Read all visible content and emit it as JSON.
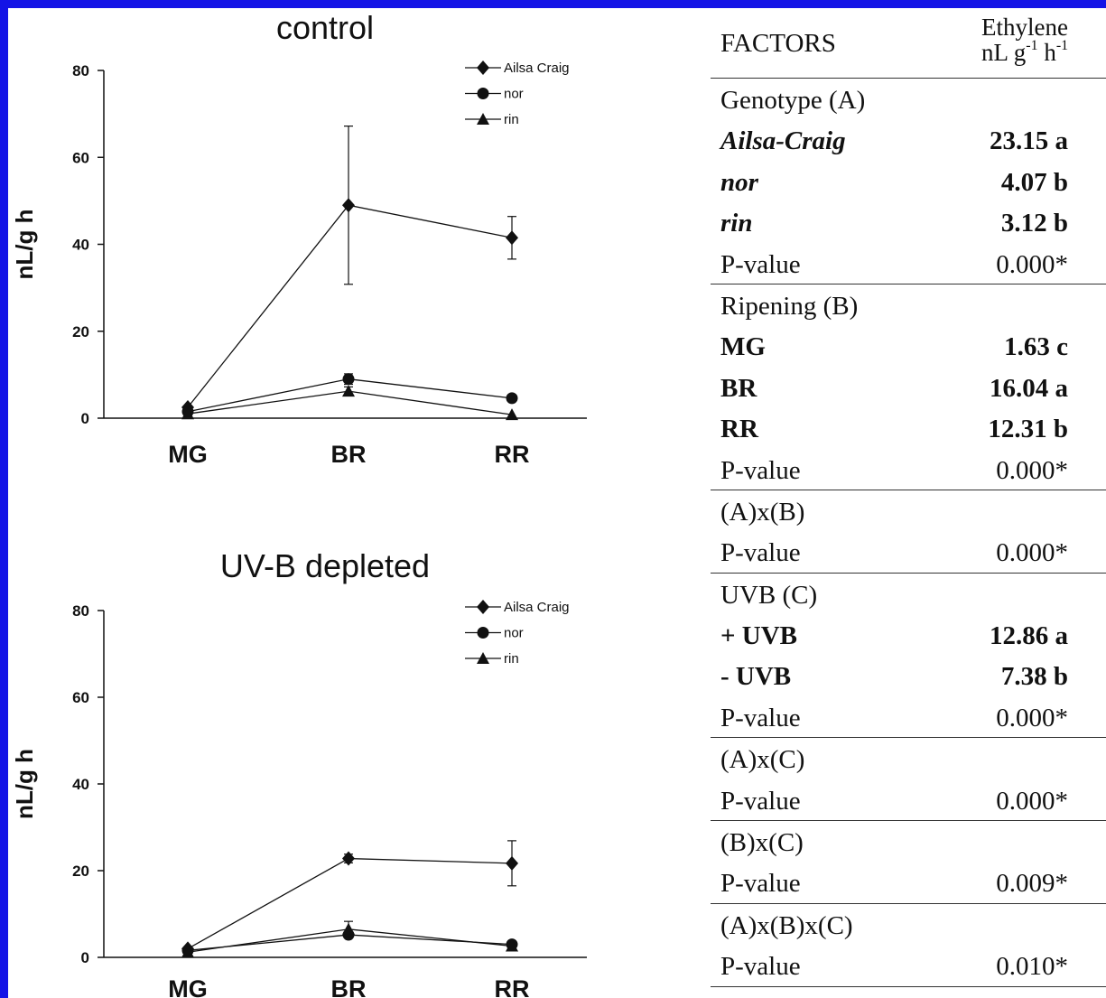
{
  "chart_data": [
    {
      "type": "line",
      "title": "control",
      "ylabel": "nL/g h",
      "categories": [
        "MG",
        "BR",
        "RR"
      ],
      "ylim": [
        0,
        80
      ],
      "yticks": [
        "0",
        "20",
        "40",
        "60",
        "80"
      ],
      "legend_position": "top-right",
      "series": [
        {
          "name": "Ailsa Craig",
          "marker": "diamond",
          "values": [
            2.5,
            49,
            41.5
          ],
          "errors": [
            0.5,
            18.2,
            4.9
          ]
        },
        {
          "name": "nor",
          "marker": "circle",
          "values": [
            1.5,
            9,
            4.6
          ],
          "errors": [
            0.4,
            1.2,
            0.6
          ]
        },
        {
          "name": "rin",
          "marker": "triangle",
          "values": [
            1.0,
            6.2,
            0.8
          ],
          "errors": [
            0.3,
            1.0,
            0.3
          ]
        }
      ]
    },
    {
      "type": "line",
      "title": "UV-B depleted",
      "ylabel": "nL/g h",
      "categories": [
        "MG",
        "BR",
        "RR"
      ],
      "ylim": [
        0,
        80
      ],
      "yticks": [
        "0",
        "20",
        "40",
        "60",
        "80"
      ],
      "legend_position": "top-right",
      "series": [
        {
          "name": "Ailsa Craig",
          "marker": "diamond",
          "values": [
            2.0,
            22.8,
            21.7
          ],
          "errors": [
            0.4,
            1.0,
            5.2
          ]
        },
        {
          "name": "nor",
          "marker": "circle",
          "values": [
            1.6,
            5.2,
            3.0
          ],
          "errors": [
            0.3,
            0.5,
            0.4
          ]
        },
        {
          "name": "rin",
          "marker": "triangle",
          "values": [
            1.2,
            6.5,
            2.6
          ],
          "errors": [
            0.3,
            1.8,
            0.4
          ]
        }
      ]
    }
  ],
  "table": {
    "header": {
      "factor_label": "FACTORS",
      "measure": "Ethylene",
      "unit_base": "nL g",
      "unit_exp1": "-1",
      "unit_mid": " h",
      "unit_exp2": "-1"
    },
    "sections": [
      {
        "rows": [
          {
            "label": "Genotype (A)",
            "value": "",
            "style": "plain"
          },
          {
            "label": "Ailsa-Craig",
            "value": "23.15 a",
            "style": "bold-italic"
          },
          {
            "label": "nor",
            "value": "4.07 b",
            "style": "bold-italic"
          },
          {
            "label": "rin",
            "value": "3.12 b",
            "style": "bold-italic"
          },
          {
            "label": "P-value",
            "value": "0.000*",
            "style": "plain"
          }
        ]
      },
      {
        "rows": [
          {
            "label": "Ripening (B)",
            "value": "",
            "style": "plain"
          },
          {
            "label": "MG",
            "value": "1.63 c",
            "style": "bold"
          },
          {
            "label": "BR",
            "value": "16.04 a",
            "style": "bold"
          },
          {
            "label": "RR",
            "value": "12.31 b",
            "style": "bold"
          },
          {
            "label": "P-value",
            "value": "0.000*",
            "style": "plain"
          }
        ]
      },
      {
        "rows": [
          {
            "label": "(A)x(B)",
            "value": "",
            "style": "plain"
          },
          {
            "label": "P-value",
            "value": "0.000*",
            "style": "plain"
          }
        ]
      },
      {
        "rows": [
          {
            "label": "UVB (C)",
            "value": "",
            "style": "plain"
          },
          {
            "label": "+ UVB",
            "value": "12.86 a",
            "style": "bold"
          },
          {
            "label": "- UVB",
            "value": "7.38 b",
            "style": "bold"
          },
          {
            "label": "P-value",
            "value": "0.000*",
            "style": "plain"
          }
        ]
      },
      {
        "rows": [
          {
            "label": "(A)x(C)",
            "value": "",
            "style": "plain"
          },
          {
            "label": "P-value",
            "value": "0.000*",
            "style": "plain"
          }
        ]
      },
      {
        "rows": [
          {
            "label": "(B)x(C)",
            "value": "",
            "style": "plain"
          },
          {
            "label": "P-value",
            "value": "0.009*",
            "style": "plain"
          }
        ]
      },
      {
        "rows": [
          {
            "label": "(A)x(B)x(C)",
            "value": "",
            "style": "plain"
          },
          {
            "label": "P-value",
            "value": "0.010*",
            "style": "plain"
          }
        ]
      }
    ]
  }
}
